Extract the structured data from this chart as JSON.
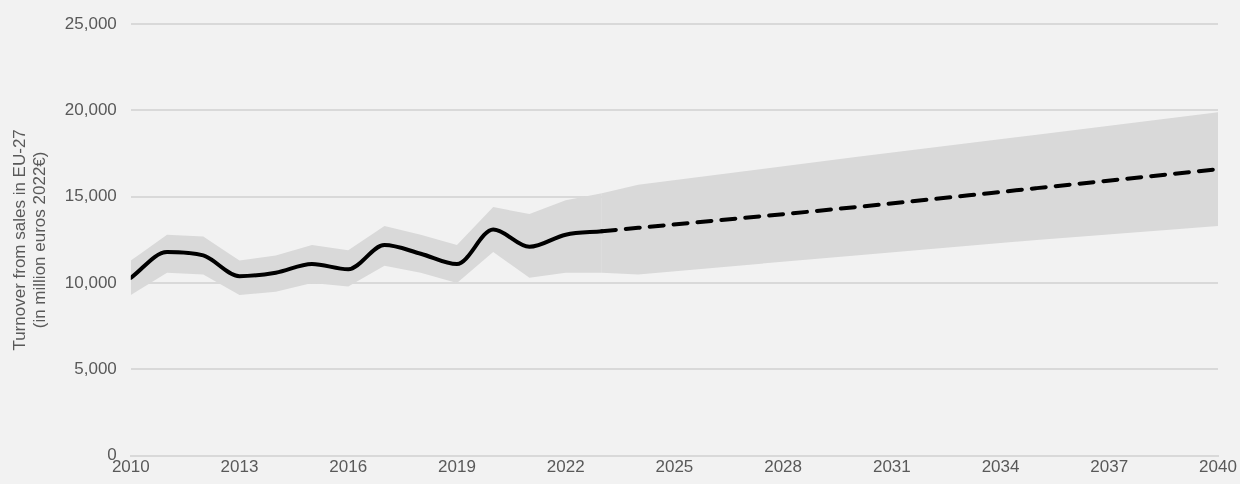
{
  "chart_data": {
    "type": "line",
    "ylabel": "Turnover from sales in EU-27\n(in million euros 2022€)",
    "xlim": [
      2010,
      2040
    ],
    "xticks": [
      2010,
      2013,
      2016,
      2019,
      2022,
      2025,
      2028,
      2031,
      2034,
      2037,
      2040
    ],
    "ylim": [
      0,
      25000
    ],
    "yticks": [
      {
        "value": 0,
        "label": "0"
      },
      {
        "value": 5000,
        "label": "5,000"
      },
      {
        "value": 10000,
        "label": "10,000"
      },
      {
        "value": 15000,
        "label": "15,000"
      },
      {
        "value": 20000,
        "label": "20,000"
      },
      {
        "value": 25000,
        "label": "25,000"
      }
    ],
    "grid": "y",
    "legend": false,
    "marker": "none",
    "series": [
      {
        "color": "#000000",
        "line_style": "solid",
        "x": [
          2010,
          2011,
          2012,
          2013,
          2014,
          2015,
          2016,
          2017,
          2018,
          2019,
          2020,
          2021,
          2022,
          2023
        ],
        "values": [
          10300,
          11800,
          11600,
          10400,
          10600,
          11100,
          10800,
          12200,
          11700,
          11100,
          13100,
          12100,
          12800,
          13000
        ],
        "lower": [
          9300,
          10600,
          10500,
          9300,
          9500,
          10000,
          9800,
          11000,
          10600,
          10000,
          11800,
          10300,
          10600,
          10600
        ],
        "upper": [
          11300,
          12800,
          12700,
          11300,
          11600,
          12200,
          11900,
          13300,
          12800,
          12200,
          14400,
          14000,
          14800,
          15200
        ]
      },
      {
        "color": "#000000",
        "line_style": "dashed",
        "x": [
          2023,
          2024,
          2030,
          2035,
          2040
        ],
        "values": [
          13000,
          13200,
          14400,
          15500,
          16600
        ],
        "lower": [
          10600,
          10500,
          11600,
          12500,
          13300
        ],
        "upper": [
          15200,
          15700,
          17300,
          18600,
          19900
        ]
      }
    ]
  }
}
